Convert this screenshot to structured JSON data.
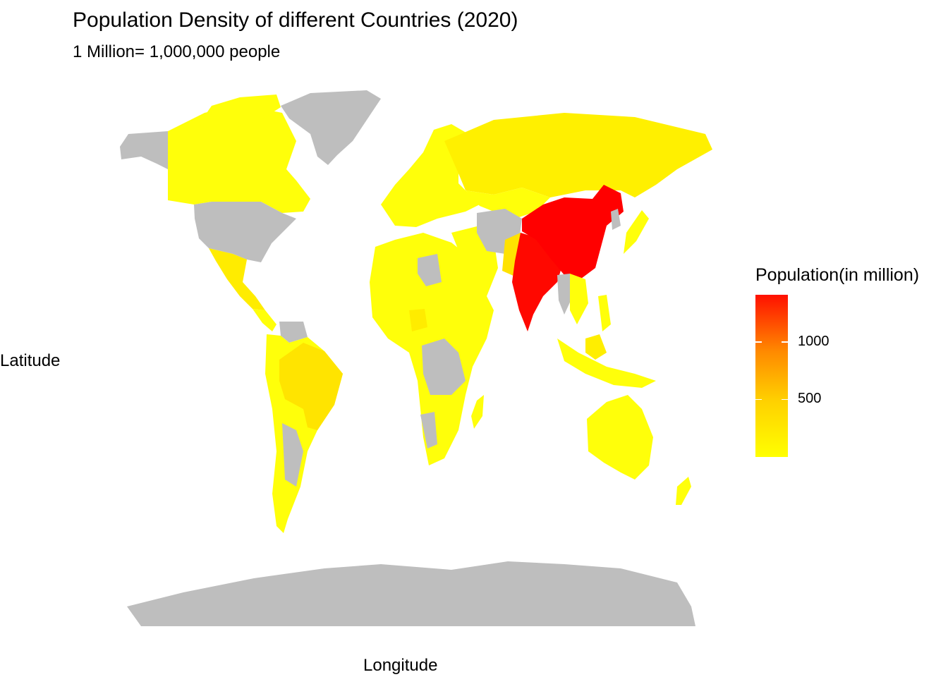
{
  "title": "Population Density of different Countries (2020)",
  "subtitle": "1 Million= 1,000,000 people",
  "xlabel": "Longitude",
  "ylabel": "Latitude",
  "legend": {
    "title": "Population(in million)",
    "range": [
      0,
      1411
    ],
    "colors": {
      "low": "#ffff00",
      "mid": "#ff9900",
      "high": "#ff0000"
    },
    "ticks": [
      {
        "value": 500,
        "label": "500"
      },
      {
        "value": 1000,
        "label": "1000"
      }
    ]
  },
  "map_style": {
    "missing_color": "#bebebe",
    "projection": "equirectangular"
  },
  "chart_data": {
    "type": "choropleth",
    "title": "Population Density of different Countries (2020)",
    "subtitle": "1 Million= 1,000,000 people",
    "xlabel": "Longitude",
    "ylabel": "Latitude",
    "fill_variable": "Population(in million)",
    "no_data_countries": [
      "United States",
      "Greenland",
      "Antarctica",
      "Afghanistan",
      "Myanmar",
      "Venezuela",
      "Namibia",
      "Niger"
    ],
    "approximate_values": [
      {
        "country": "China",
        "population_million": 1411
      },
      {
        "country": "India",
        "population_million": 1380
      },
      {
        "country": "Brazil",
        "population_million": 212
      },
      {
        "country": "Indonesia",
        "population_million": 273
      },
      {
        "country": "Pakistan",
        "population_million": 220
      },
      {
        "country": "Nigeria",
        "population_million": 206
      },
      {
        "country": "Russia",
        "population_million": 146
      }
    ]
  }
}
